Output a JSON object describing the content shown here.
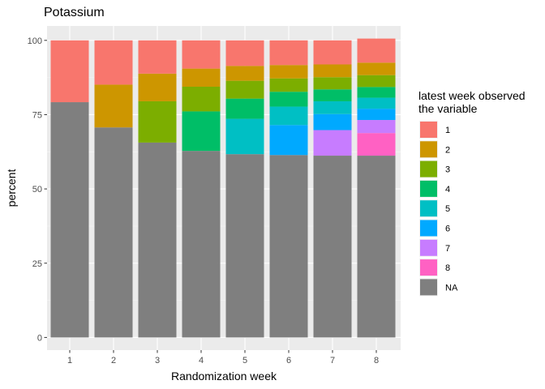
{
  "chart_data": {
    "type": "bar",
    "stacked": true,
    "title": "Potassium",
    "xlabel": "Randomization week",
    "ylabel": "percent",
    "ylim": [
      0,
      100
    ],
    "yticks": [
      0,
      25,
      50,
      75,
      100
    ],
    "grid": true,
    "legend_position": "right",
    "legend_title_lines": [
      "latest week observed",
      " the variable"
    ],
    "categories": [
      "1",
      "2",
      "3",
      "4",
      "5",
      "6",
      "7",
      "8"
    ],
    "series": [
      {
        "name": "NA",
        "color": "#7f7f7f",
        "values": [
          79.2,
          70.7,
          65.6,
          62.8,
          61.7,
          61.4,
          61.2,
          61.2
        ]
      },
      {
        "name": "8",
        "color": "#ff61c3",
        "values": [
          0,
          0,
          0,
          0,
          0,
          0,
          0,
          7.6
        ]
      },
      {
        "name": "7",
        "color": "#c77cff",
        "values": [
          0,
          0,
          0,
          0,
          0,
          0,
          8.6,
          4.4
        ]
      },
      {
        "name": "6",
        "color": "#00a9ff",
        "values": [
          0,
          0,
          0,
          0,
          0,
          10.1,
          5.4,
          3.8
        ]
      },
      {
        "name": "5",
        "color": "#00bfc4",
        "values": [
          0,
          0,
          0,
          0,
          11.9,
          6.2,
          4.3,
          3.7
        ]
      },
      {
        "name": "4",
        "color": "#00be67",
        "values": [
          0,
          0,
          0,
          13.3,
          6.8,
          5.0,
          4.0,
          3.6
        ]
      },
      {
        "name": "3",
        "color": "#7cae00",
        "values": [
          0,
          0,
          13.9,
          8.3,
          6.0,
          4.5,
          4.1,
          4.0
        ]
      },
      {
        "name": "2",
        "color": "#cd9600",
        "values": [
          0,
          14.4,
          9.3,
          6.1,
          5.0,
          4.5,
          4.3,
          4.2
        ]
      },
      {
        "name": "1",
        "color": "#f8766d",
        "values": [
          20.8,
          14.9,
          11.2,
          9.5,
          8.6,
          8.3,
          8.1,
          8.1
        ]
      }
    ],
    "legend_order": [
      "1",
      "2",
      "3",
      "4",
      "5",
      "6",
      "7",
      "8",
      "NA"
    ]
  }
}
